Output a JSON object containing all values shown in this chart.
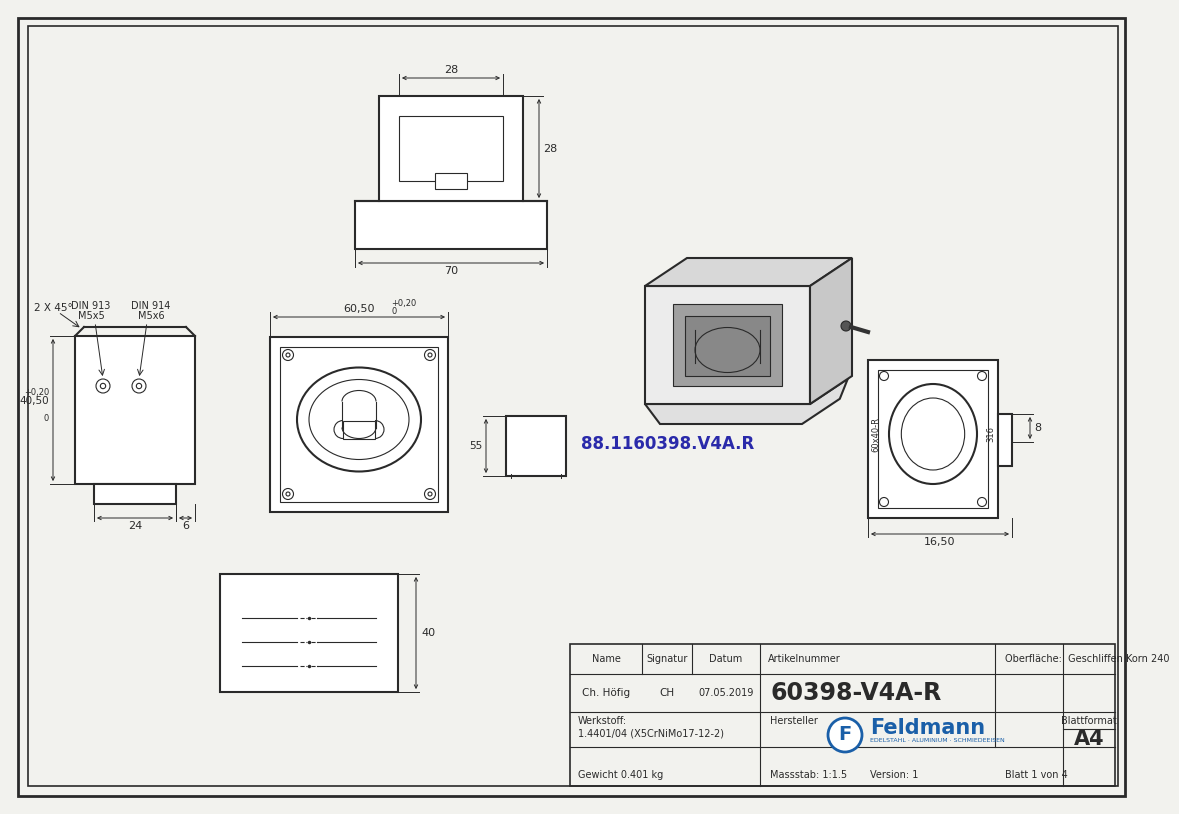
{
  "bg_color": "#f2f2ee",
  "line_color": "#2a2a2a",
  "article_number": "60398-V4A-R",
  "article_number_code": "88.1160398.V4A.R",
  "name": "Ch. Höfig",
  "signatur": "CH",
  "datum": "07.05.2019",
  "werkstoff": "1.4401/04 (X5CrNiMo17-12-2)",
  "gewicht": "Gewicht 0.401 kg",
  "massstab": "Massstab: 1:1.5",
  "version": "Version: 1",
  "blatt": "Blatt 1 von 4",
  "blattformat": "A4",
  "oberflaeche": "Oberfläche:  Geschliffen Korn 240",
  "dim_28_top": "28",
  "dim_28_right": "28",
  "dim_70": "70",
  "dim_6050": "60,50",
  "dim_4050": "40,50",
  "dim_24": "24",
  "dim_6": "6",
  "dim_40": "40",
  "dim_8": "8",
  "dim_1650": "16,50",
  "din913": "DIN 913",
  "din913_sub": "M5x5",
  "din914": "DIN 914",
  "din914_sub": "M5x6",
  "angle_label": "2 X 45°"
}
